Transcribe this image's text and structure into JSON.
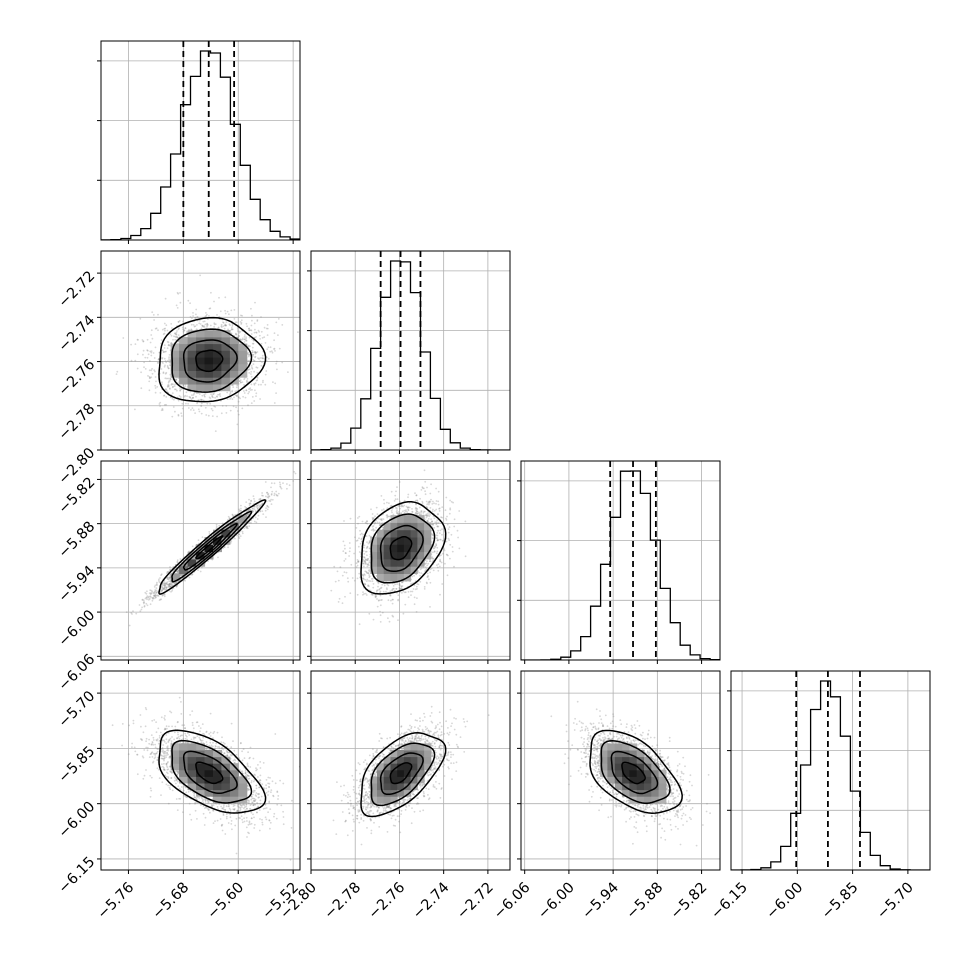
{
  "chart_data": {
    "type": "corner",
    "grid": true,
    "colors": {
      "hist_line": "#000000",
      "quantile_line": "#000000",
      "grid": "#b0b0b0",
      "contour": "#000000",
      "density_dark": "#000000",
      "scatter_point": "#8c8c8c"
    },
    "parameters": [
      {
        "range": [
          -5.8,
          -5.51
        ],
        "ticks": [
          "−5.76",
          "−5.68",
          "−5.60",
          "−5.52"
        ],
        "tick_values": [
          -5.76,
          -5.68,
          -5.6,
          -5.52
        ],
        "mean": -5.643,
        "sd": 0.0385,
        "quantiles": [
          -5.68,
          -5.643,
          -5.606
        ]
      },
      {
        "range": [
          -2.8,
          -2.71
        ],
        "ticks": [
          "−2.80",
          "−2.78",
          "−2.76",
          "−2.74",
          "−2.72"
        ],
        "tick_values": [
          -2.8,
          -2.78,
          -2.76,
          -2.74,
          -2.72
        ],
        "mean": -2.7595,
        "sd": 0.0095,
        "quantiles": [
          -2.7685,
          -2.7595,
          -2.7505
        ]
      },
      {
        "range": [
          -6.065,
          -5.795
        ],
        "ticks": [
          "−6.06",
          "−6.00",
          "−5.94",
          "−5.88",
          "−5.82"
        ],
        "tick_values": [
          -6.06,
          -6.0,
          -5.94,
          -5.88,
          -5.82
        ],
        "mean": -5.913,
        "sd": 0.031,
        "quantiles": [
          -5.944,
          -5.913,
          -5.882
        ]
      },
      {
        "range": [
          -6.18,
          -5.64
        ],
        "ticks": [
          "−6.15",
          "−6.00",
          "−5.85",
          "−5.70"
        ],
        "tick_values": [
          -6.15,
          -6.0,
          -5.85,
          -5.7
        ],
        "mean": -5.917,
        "sd": 0.056,
        "quantiles": [
          -6.003,
          -5.917,
          -5.83
        ]
      }
    ],
    "correlations": [
      {
        "pair": [
          0,
          1
        ],
        "rho": 0.08
      },
      {
        "pair": [
          0,
          2
        ],
        "rho": 0.97
      },
      {
        "pair": [
          1,
          2
        ],
        "rho": 0.3
      },
      {
        "pair": [
          0,
          3
        ],
        "rho": -0.55
      },
      {
        "pair": [
          1,
          3
        ],
        "rho": 0.55
      },
      {
        "pair": [
          2,
          3
        ],
        "rho": -0.5
      }
    ],
    "hist_bins": 20,
    "contour_levels_sigma": [
      0.5,
      1.0,
      1.5,
      2.0
    ],
    "scatter_points_per_panel": 2500
  }
}
